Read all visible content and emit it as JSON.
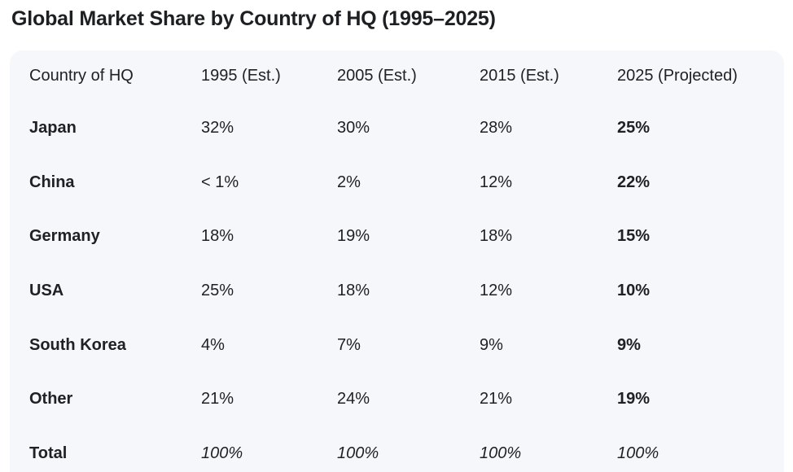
{
  "page": {
    "title": "Global Market Share by Country of HQ (1995–2025)"
  },
  "colors": {
    "page_background": "#ffffff",
    "card_background": "#f6f7fa",
    "text": "#202124",
    "title_text": "#1e1f22"
  },
  "chart_data": {
    "type": "table",
    "title": "Global Market Share by Country of HQ (1995–2025)",
    "columns": [
      "Country of HQ",
      "1995 (Est.)",
      "2005 (Est.)",
      "2015 (Est.)",
      "2025 (Projected)"
    ],
    "rows": [
      {
        "label": "Japan",
        "values": [
          "32%",
          "30%",
          "28%",
          "25%"
        ]
      },
      {
        "label": "China",
        "values": [
          "< 1%",
          "2%",
          "12%",
          "22%"
        ]
      },
      {
        "label": "Germany",
        "values": [
          "18%",
          "19%",
          "18%",
          "15%"
        ]
      },
      {
        "label": "USA",
        "values": [
          "25%",
          "18%",
          "12%",
          "10%"
        ]
      },
      {
        "label": "South Korea",
        "values": [
          "4%",
          "7%",
          "9%",
          "9%"
        ]
      },
      {
        "label": "Other",
        "values": [
          "21%",
          "24%",
          "21%",
          "19%"
        ]
      },
      {
        "label": "Total",
        "values": [
          "100%",
          "100%",
          "100%",
          "100%"
        ],
        "style": "total"
      }
    ],
    "layout": {
      "header_row_weight": "regular",
      "row_label_bold": true,
      "last_column_bold": true,
      "total_row_values_italic": true,
      "grid": false,
      "row_dividers": false
    }
  }
}
